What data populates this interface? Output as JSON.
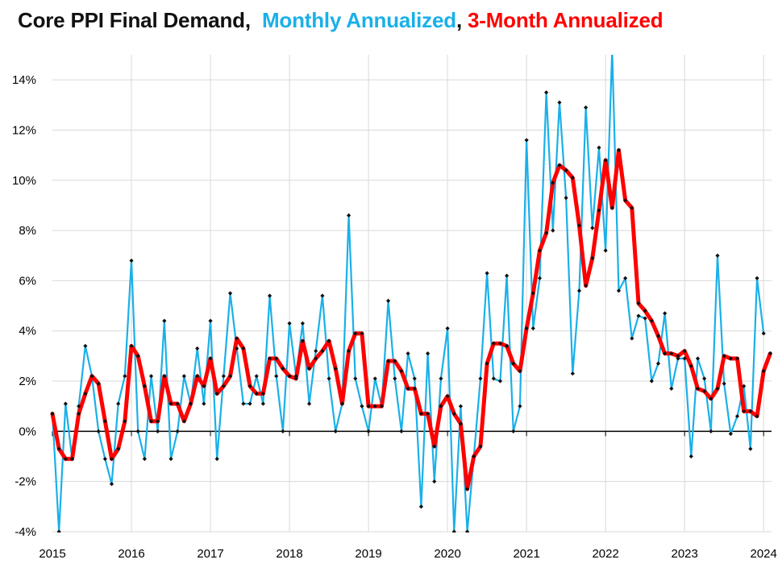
{
  "chart_data": {
    "type": "line",
    "title": {
      "main": "Core PPI Final Demand,",
      "monthly": "Monthly Annualized",
      "separator": ",",
      "three_month": "3-Month Annualized"
    },
    "xlabel": "",
    "ylabel": "",
    "ylim": [
      -4,
      15
    ],
    "yticks": [
      -4,
      -2,
      0,
      2,
      4,
      6,
      8,
      10,
      12,
      14
    ],
    "ytick_labels": [
      "-4%",
      "-2%",
      "0%",
      "2%",
      "4%",
      "6%",
      "8%",
      "10%",
      "12%",
      "14%"
    ],
    "xlim": [
      2015,
      2024.1
    ],
    "xticks": [
      2015,
      2016,
      2017,
      2018,
      2019,
      2020,
      2021,
      2022,
      2023,
      2024
    ],
    "xtick_labels": [
      "2015",
      "2016",
      "2017",
      "2018",
      "2019",
      "2020",
      "2021",
      "2022",
      "2023",
      "2024"
    ],
    "grid": true,
    "colors": {
      "monthly": "#1ab0e8",
      "three_month": "#ff0000",
      "marker": "#111111",
      "grid": "#d9d9d9",
      "axis": "#000000"
    },
    "series": [
      {
        "name": "Monthly Annualized",
        "start": 2015.0,
        "step_months": 1,
        "values": [
          0.7,
          -4.0,
          1.1,
          -1.1,
          1.0,
          3.4,
          2.2,
          0.0,
          -1.1,
          -2.1,
          1.1,
          2.2,
          6.8,
          0.0,
          -1.1,
          2.2,
          0.0,
          4.4,
          -1.1,
          0.0,
          2.2,
          1.1,
          3.3,
          1.1,
          4.4,
          -1.1,
          2.2,
          5.5,
          3.3,
          1.1,
          1.1,
          2.2,
          1.1,
          5.4,
          2.2,
          0.0,
          4.3,
          2.2,
          4.3,
          1.1,
          3.2,
          5.4,
          2.1,
          0.0,
          1.1,
          8.6,
          2.1,
          1.0,
          0.0,
          2.1,
          1.0,
          5.2,
          2.1,
          0.0,
          3.1,
          2.1,
          -3.0,
          3.1,
          -2.0,
          2.1,
          4.1,
          -4.0,
          1.0,
          -4.0,
          -1.0,
          2.1,
          6.3,
          2.1,
          2.0,
          6.2,
          0.0,
          1.0,
          11.6,
          4.1,
          6.1,
          13.5,
          8.0,
          13.1,
          9.3,
          2.3,
          5.6,
          12.9,
          8.1,
          11.3,
          7.2,
          15.2,
          5.6,
          6.1,
          3.7,
          4.6,
          4.5,
          2.0,
          2.7,
          4.7,
          1.7,
          2.9,
          2.9,
          -1.0,
          2.9,
          2.1,
          0.0,
          7.0,
          1.9,
          -0.1,
          0.6,
          1.8,
          -0.7,
          6.1,
          3.9
        ]
      },
      {
        "name": "3-Month Annualized",
        "start": 2015.0,
        "step_months": 1,
        "values": [
          0.7,
          -0.7,
          -1.1,
          -1.1,
          0.7,
          1.5,
          2.2,
          1.9,
          0.4,
          -1.1,
          -0.7,
          0.4,
          3.4,
          3.0,
          1.8,
          0.4,
          0.4,
          2.2,
          1.1,
          1.1,
          0.4,
          1.1,
          2.2,
          1.8,
          2.9,
          1.5,
          1.8,
          2.2,
          3.7,
          3.3,
          1.8,
          1.5,
          1.5,
          2.9,
          2.9,
          2.5,
          2.2,
          2.1,
          3.6,
          2.5,
          2.9,
          3.2,
          3.6,
          2.5,
          1.1,
          3.2,
          3.9,
          3.9,
          1.0,
          1.0,
          1.0,
          2.8,
          2.8,
          2.4,
          1.7,
          1.7,
          0.7,
          0.7,
          -0.6,
          1.0,
          1.4,
          0.7,
          0.3,
          -2.3,
          -1.0,
          -0.6,
          2.7,
          3.5,
          3.5,
          3.4,
          2.7,
          2.4,
          4.1,
          5.5,
          7.2,
          7.9,
          9.9,
          10.6,
          10.4,
          10.1,
          8.2,
          5.8,
          6.9,
          8.8,
          10.8,
          8.9,
          11.2,
          9.2,
          8.9,
          5.1,
          4.8,
          4.4,
          3.8,
          3.1,
          3.1,
          3.0,
          3.2,
          2.6,
          1.7,
          1.6,
          1.3,
          1.7,
          3.0,
          2.9,
          2.9,
          0.8,
          0.8,
          0.6,
          2.4,
          3.1
        ]
      }
    ]
  }
}
